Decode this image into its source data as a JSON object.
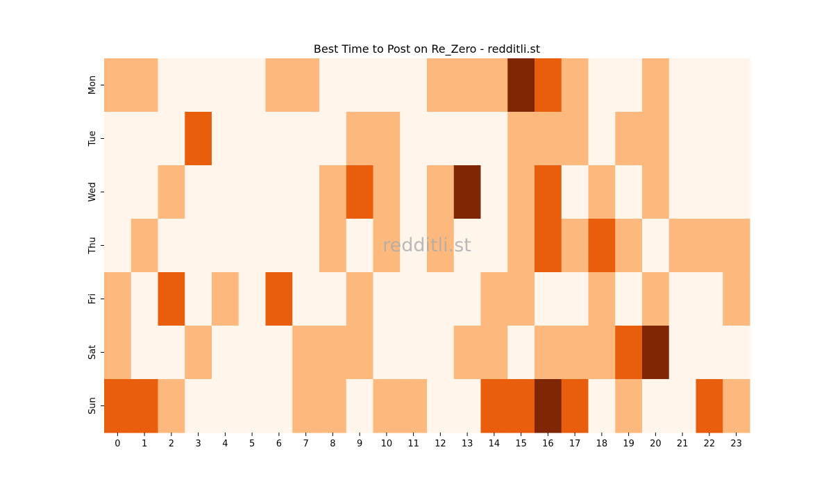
{
  "chart_data": {
    "type": "heatmap",
    "title": "Best Time to Post on Re_Zero - redditli.st",
    "watermark": "redditli.st",
    "xlabel": "",
    "ylabel": "",
    "x_categories": [
      "0",
      "1",
      "2",
      "3",
      "4",
      "5",
      "6",
      "7",
      "8",
      "9",
      "10",
      "11",
      "12",
      "13",
      "14",
      "15",
      "16",
      "17",
      "18",
      "19",
      "20",
      "21",
      "22",
      "23"
    ],
    "y_categories": [
      "Mon",
      "Tue",
      "Wed",
      "Thu",
      "Fri",
      "Sat",
      "Sun"
    ],
    "values": [
      [
        1,
        1,
        0,
        0,
        0,
        0,
        1,
        1,
        0,
        0,
        0,
        0,
        1,
        1,
        1,
        3,
        2,
        1,
        0,
        0,
        1,
        0,
        0,
        0
      ],
      [
        0,
        0,
        0,
        2,
        0,
        0,
        0,
        0,
        0,
        1,
        1,
        0,
        0,
        0,
        0,
        1,
        1,
        1,
        0,
        1,
        1,
        0,
        0,
        0
      ],
      [
        0,
        0,
        1,
        0,
        0,
        0,
        0,
        0,
        1,
        2,
        1,
        0,
        1,
        3,
        0,
        1,
        2,
        0,
        1,
        0,
        1,
        0,
        0,
        0
      ],
      [
        0,
        1,
        0,
        0,
        0,
        0,
        0,
        0,
        1,
        0,
        1,
        0,
        1,
        0,
        0,
        1,
        2,
        1,
        2,
        1,
        0,
        1,
        1,
        1
      ],
      [
        1,
        0,
        2,
        0,
        1,
        0,
        2,
        0,
        0,
        1,
        0,
        0,
        0,
        0,
        1,
        1,
        0,
        0,
        1,
        0,
        1,
        0,
        0,
        1
      ],
      [
        1,
        0,
        0,
        1,
        0,
        0,
        0,
        1,
        1,
        1,
        0,
        0,
        0,
        1,
        1,
        0,
        1,
        1,
        1,
        2,
        3,
        0,
        0,
        0
      ],
      [
        2,
        2,
        1,
        0,
        0,
        0,
        0,
        1,
        1,
        0,
        1,
        1,
        0,
        0,
        2,
        2,
        3,
        2,
        0,
        1,
        0,
        0,
        2,
        1
      ]
    ],
    "value_range": [
      0,
      3
    ],
    "colormap": [
      "#fff5eb",
      "#fdb97d",
      "#e95e0d",
      "#7f2704"
    ],
    "grid": false,
    "colorbar": false
  }
}
